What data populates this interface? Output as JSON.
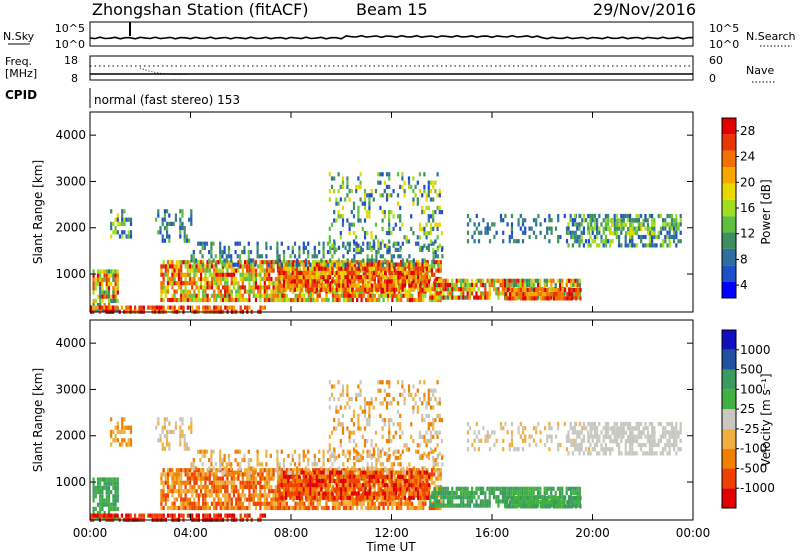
{
  "header": {
    "station": "Zhongshan Station (fitACF)",
    "beam": "Beam 15",
    "date": "29/Nov/2016"
  },
  "top_panels": {
    "nsky_label": "N.Sky",
    "nsky_ticks": [
      "10^5",
      "10^0"
    ],
    "nsearch_label": "N.Search",
    "nsearch_ticks": [
      "10^5",
      "10^0"
    ],
    "freq_label_1": "Freq.",
    "freq_label_2": "[MHz]",
    "freq_ticks": [
      "18",
      "8"
    ],
    "nave_label": "Nave",
    "nave_ticks": [
      "60",
      "0"
    ],
    "cpid_label": "CPID",
    "cpid_text": "normal (fast stereo) 153"
  },
  "chart_data": [
    {
      "type": "heatmap",
      "name": "Power",
      "ylabel": "Slant Range [km]",
      "ylim": [
        180,
        4500
      ],
      "yticks": [
        "4000",
        "3000",
        "2000",
        "1000"
      ],
      "xlim": [
        "00:00",
        "24:00"
      ],
      "colorbar_label": "Power [dB]",
      "colorbar_ticks": [
        "28",
        "24",
        "20",
        "16",
        "12",
        "8",
        "4"
      ],
      "colors": [
        "#0000ff",
        "#1f4fc8",
        "#2f6f9f",
        "#3d8f5f",
        "#5fbf3f",
        "#9fdf1f",
        "#e8d800",
        "#f6a800",
        "#f07000",
        "#e83800",
        "#e00000"
      ]
    },
    {
      "type": "heatmap",
      "name": "Velocity",
      "ylabel": "Slant Range [km]",
      "ylim": [
        180,
        4500
      ],
      "yticks": [
        "4000",
        "3000",
        "2000",
        "1000"
      ],
      "xlim": [
        "00:00",
        "24:00"
      ],
      "xlabel": "Time UT",
      "xticks": [
        "00:00",
        "04:00",
        "08:00",
        "12:00",
        "16:00",
        "20:00",
        "00:00"
      ],
      "colorbar_label": "Velocity [m s⁻¹]",
      "colorbar_ticks": [
        "1000",
        "500",
        "100",
        "25",
        "-25",
        "-100",
        "-500",
        "-1000"
      ],
      "colors": [
        "#e00000",
        "#f04000",
        "#f08000",
        "#f0b040",
        "#c8c8c0",
        "#40b040",
        "#3a9a60",
        "#2050a0",
        "#1010c0"
      ]
    }
  ]
}
